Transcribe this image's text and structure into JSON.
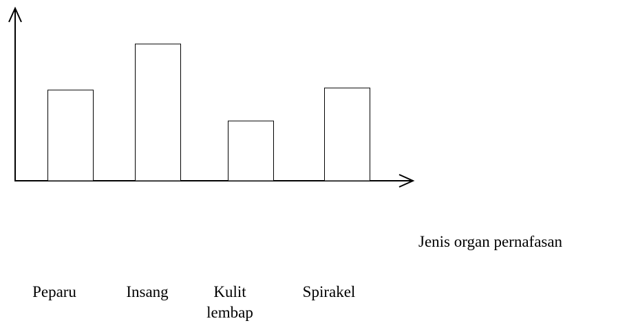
{
  "chart_data": {
    "type": "bar",
    "x_label": "Jenis organ pernafasan",
    "categories": [
      "Peparu",
      "Insang",
      "Kulit lembap",
      "Spirakel"
    ],
    "values": [
      132,
      199,
      87,
      135
    ],
    "color": "#ffffff",
    "ylim": [
      0,
      251
    ]
  }
}
